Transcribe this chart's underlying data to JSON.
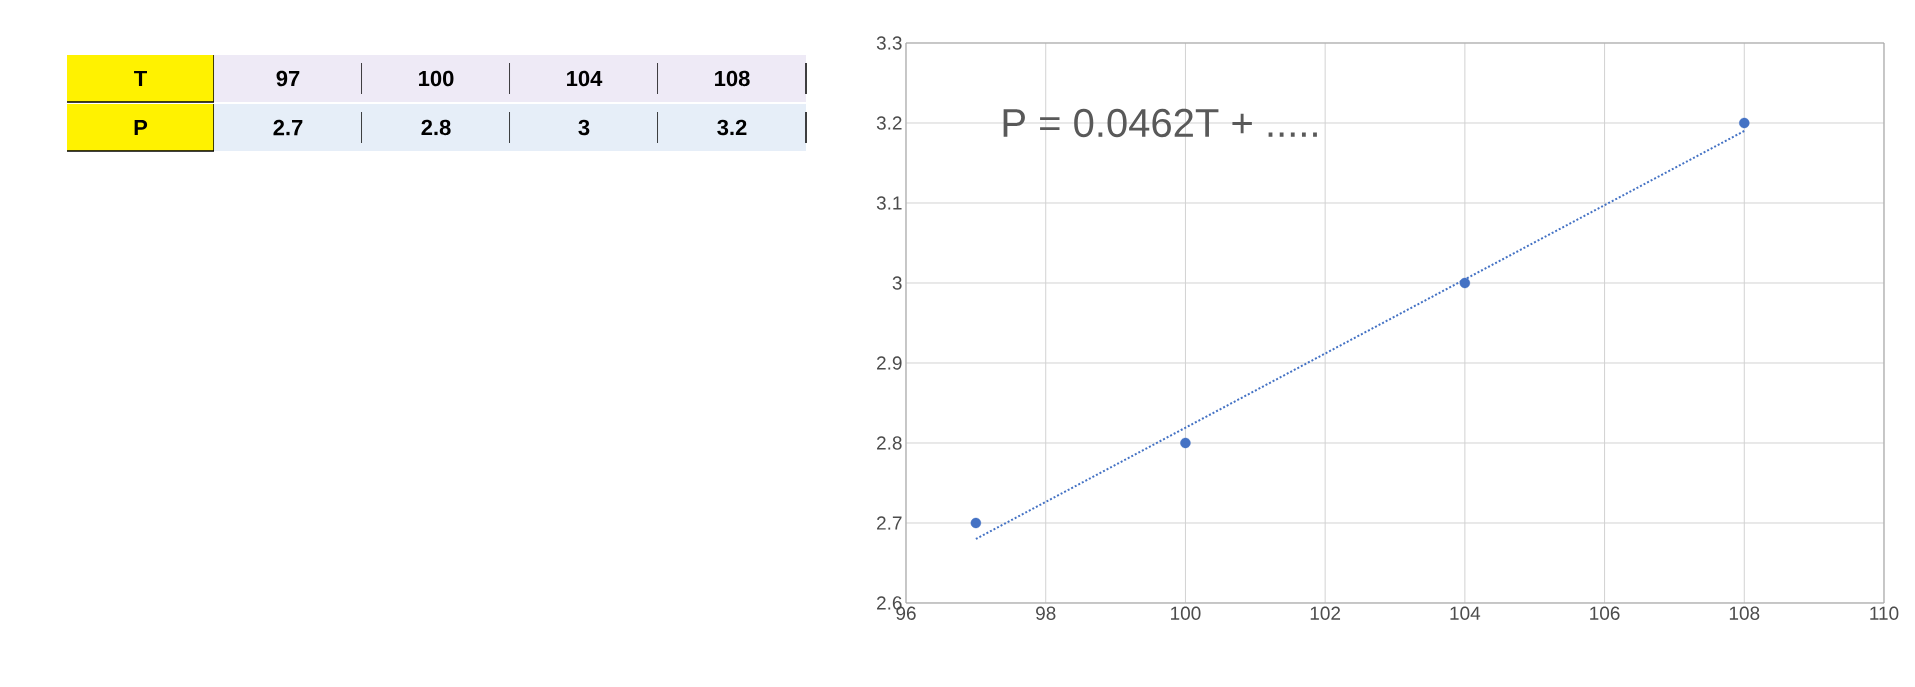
{
  "chart_data": [
    {
      "type": "other",
      "annotations": [
        "T",
        "97",
        "100",
        "104",
        "108",
        "P",
        "2.7",
        "2.8",
        "3",
        "3.2"
      ]
    },
    {
      "type": "scatter",
      "annotations": [
        "P = 0.0462T + ....."
      ],
      "series": [
        {
          "x": [
            97,
            100,
            104,
            108
          ],
          "values": [
            2.7,
            2.8,
            3,
            3.2
          ],
          "color": "#4472c4",
          "marker": "circle"
        },
        {
          "type": "line",
          "x": [
            97,
            108
          ],
          "values": [
            2.68,
            3.19
          ],
          "color": "#4472c4",
          "line_style": "dotted",
          "marker": "none"
        }
      ],
      "xlim": [
        96,
        110
      ],
      "xticks": [
        96,
        98,
        100,
        102,
        104,
        106,
        108,
        110
      ],
      "ylim": [
        2.6,
        3.3
      ],
      "yticks": [
        2.6,
        2.7,
        2.8,
        2.9,
        3,
        3.1,
        3.2,
        3.3
      ],
      "grid": true
    }
  ]
}
